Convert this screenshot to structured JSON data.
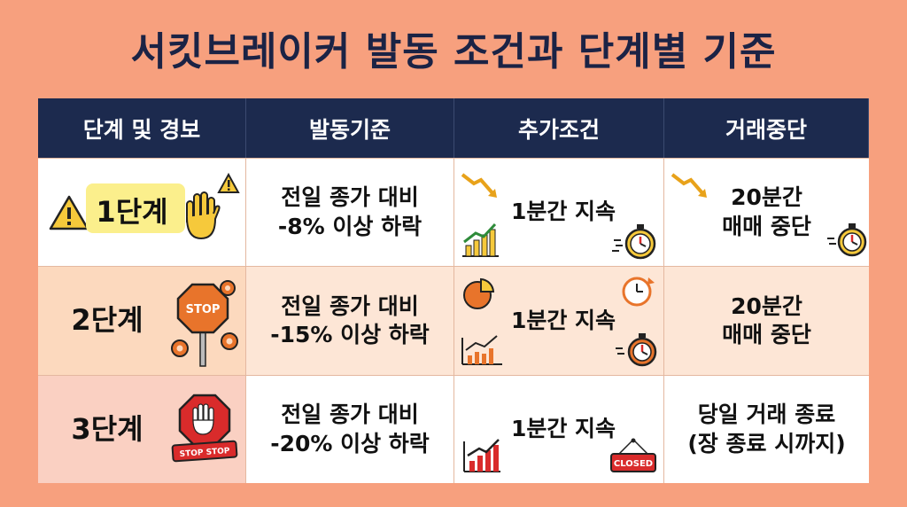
{
  "title": "서킷브레이커 발동 조건과 단계별 기준",
  "headers": [
    "단계 및 경보",
    "발동기준",
    "추가조건",
    "거래중단"
  ],
  "rows": [
    {
      "stage": "1단계",
      "trigger": "전일 종가 대비\n-8% 이상 하락",
      "condition": "1분간 지속",
      "halt": "20분간\n매매 중단"
    },
    {
      "stage": "2단계",
      "trigger": "전일 종가 대비\n-15% 이상 하락",
      "condition": "1분간 지속",
      "halt": "20분간\n매매 중단"
    },
    {
      "stage": "3단계",
      "trigger": "전일 종가 대비\n-20% 이상 하락",
      "condition": "1분간 지속",
      "halt": "당일 거래 종료\n(장 종료 시까지)"
    }
  ],
  "icon_text": {
    "stop_sign": "STOP",
    "stop_stop_banner": "STOP STOP",
    "closed_sign": "CLOSED"
  },
  "icons": {
    "row1_stage": [
      "warning-triangle-icon",
      "raised-hand-icon",
      "small-warning-icon"
    ],
    "row2_stage": [
      "stop-sign-icon",
      "gear-icon"
    ],
    "row3_stage": [
      "stop-hand-sign-icon"
    ],
    "condition": [
      "down-trend-arrow-icon",
      "bar-chart-up-icon",
      "stopwatch-icon",
      "pie-chart-icon",
      "clock-refresh-icon",
      "closed-sign-icon"
    ]
  },
  "colors": {
    "background": "#F7A07E",
    "header": "#1C2A4E",
    "title": "#1B2345",
    "accent_orange": "#E8742B",
    "accent_red": "#D92B2B",
    "accent_yellow": "#F6C93B"
  }
}
